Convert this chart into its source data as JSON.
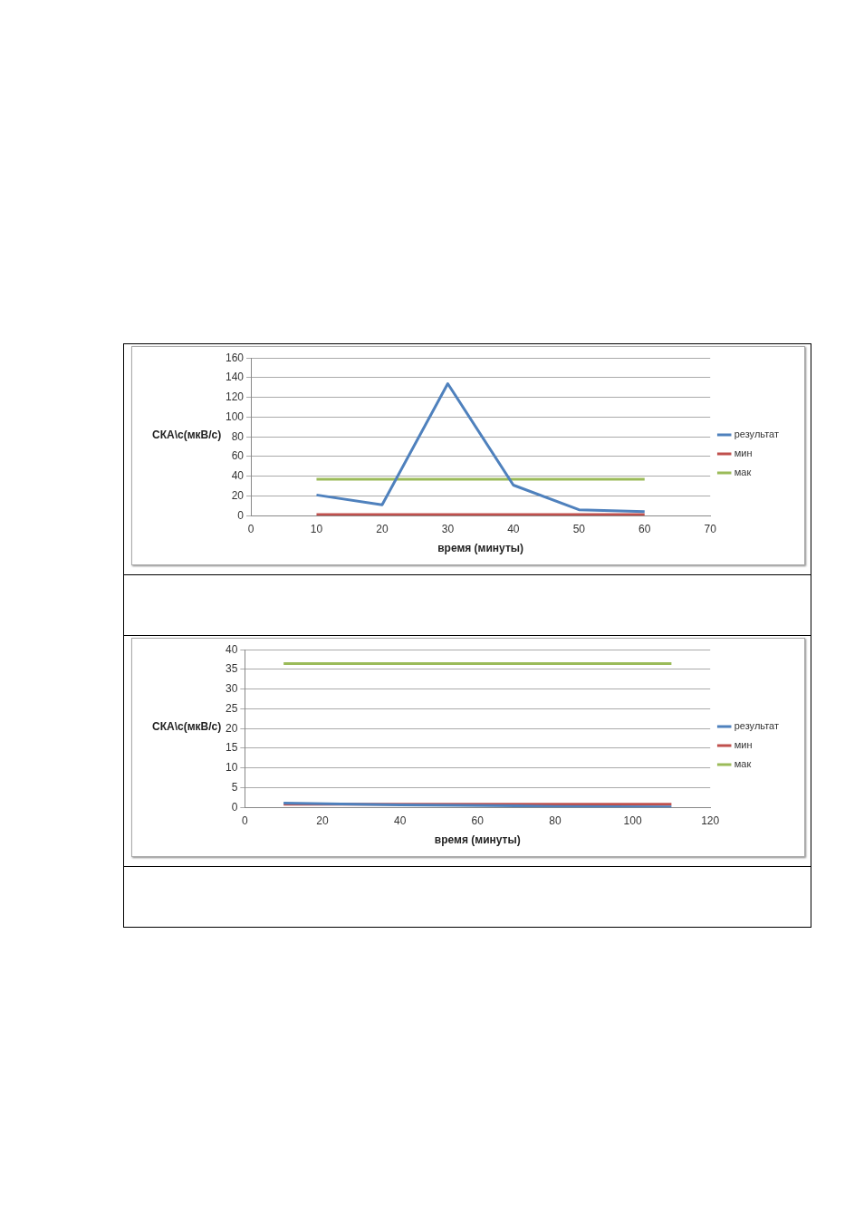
{
  "chart_data": [
    {
      "type": "line",
      "xlabel": "время (минуты)",
      "ylabel": "СКА\\с(мкВ/с)",
      "xlim": [
        0,
        70
      ],
      "xticks": [
        0,
        10,
        20,
        30,
        40,
        50,
        60,
        70
      ],
      "ylim": [
        0,
        160
      ],
      "yticks": [
        0,
        20,
        40,
        60,
        80,
        100,
        120,
        140,
        160
      ],
      "grid": "y",
      "legend": "right",
      "marker": "none",
      "series": [
        {
          "name": "результат",
          "color": "#4f81bd",
          "x": [
            10,
            20,
            30,
            40,
            50,
            60
          ],
          "values": [
            21,
            11,
            134,
            31,
            6,
            4
          ]
        },
        {
          "name": "мин",
          "color": "#c0504d",
          "x": [
            10,
            60
          ],
          "values": [
            1,
            1
          ]
        },
        {
          "name": "мак",
          "color": "#9bbb59",
          "x": [
            10,
            60
          ],
          "values": [
            37,
            37
          ]
        }
      ]
    },
    {
      "type": "line",
      "xlabel": "время (минуты)",
      "ylabel": "СКА\\с(мкВ/с)",
      "xlim": [
        0,
        120
      ],
      "xticks": [
        0,
        20,
        40,
        60,
        80,
        100,
        120
      ],
      "ylim": [
        0,
        40
      ],
      "yticks": [
        0,
        5,
        10,
        15,
        20,
        25,
        30,
        35,
        40
      ],
      "grid": "y",
      "legend": "right",
      "marker": "none",
      "series": [
        {
          "name": "результат",
          "color": "#4f81bd",
          "x": [
            10,
            40,
            70,
            80,
            110
          ],
          "values": [
            1.1,
            0.6,
            0.4,
            0.2,
            0.1
          ]
        },
        {
          "name": "мин",
          "color": "#c0504d",
          "x": [
            10,
            110
          ],
          "values": [
            0.8,
            0.8
          ]
        },
        {
          "name": "мак",
          "color": "#9bbb59",
          "x": [
            10,
            110
          ],
          "values": [
            36.5,
            36.5
          ]
        }
      ]
    }
  ]
}
